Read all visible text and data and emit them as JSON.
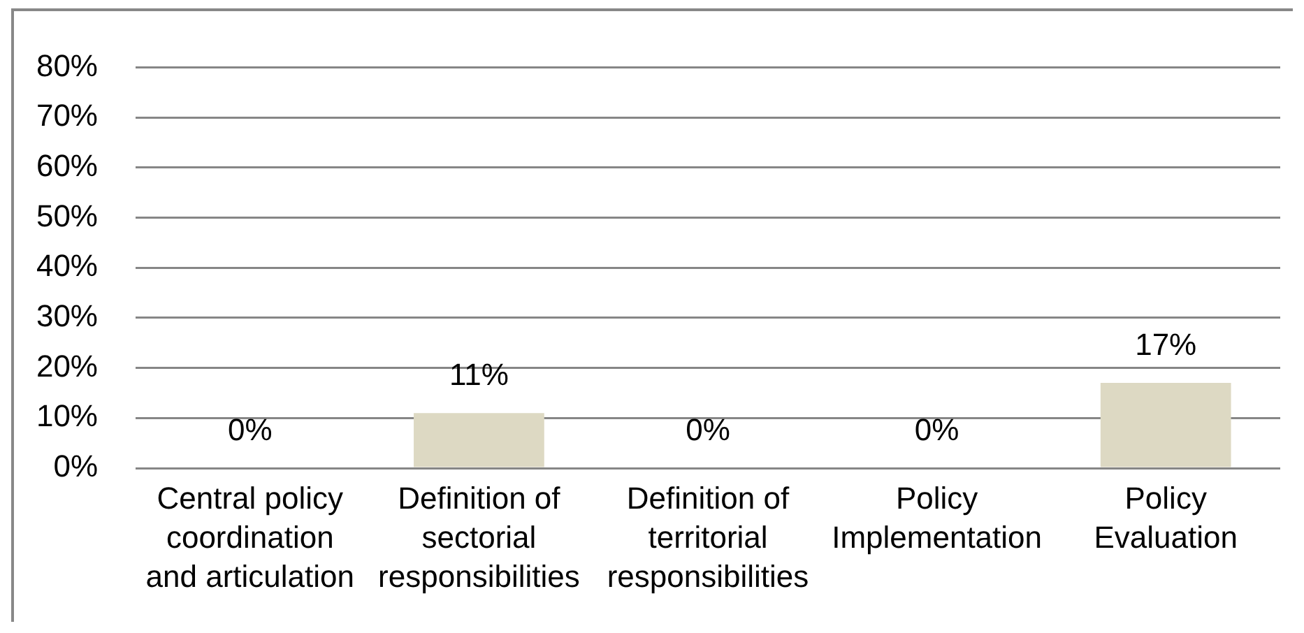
{
  "chart_data": {
    "type": "bar",
    "categories": [
      "Central policy coordination and articulation",
      "Definition of sectorial responsibilities",
      "Definition of territorial responsibilities",
      "Policy Implementation",
      "Policy Evaluation"
    ],
    "values": [
      0,
      11,
      0,
      0,
      17
    ],
    "color": "#ddd9c3",
    "value_labels": [
      "0%",
      "11%",
      "0%",
      "0%",
      "17%"
    ],
    "ylim": [
      0,
      80
    ],
    "yticks": [
      {
        "value": 0,
        "label": "0%"
      },
      {
        "value": 10,
        "label": "10%"
      },
      {
        "value": 20,
        "label": "20%"
      },
      {
        "value": 30,
        "label": "30%"
      },
      {
        "value": 40,
        "label": "40%"
      },
      {
        "value": 50,
        "label": "50%"
      },
      {
        "value": 60,
        "label": "60%"
      },
      {
        "value": 70,
        "label": "70%"
      },
      {
        "value": 80,
        "label": "80%"
      }
    ],
    "grid": "y"
  }
}
